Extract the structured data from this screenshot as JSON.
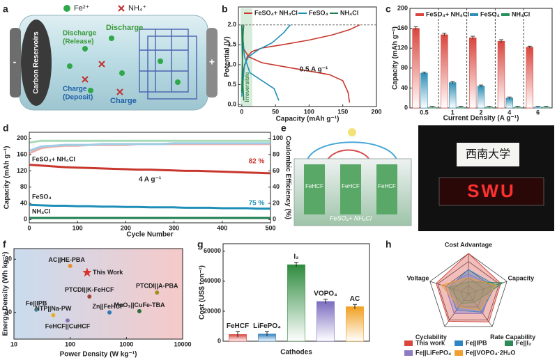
{
  "panel_labels": [
    "a",
    "b",
    "c",
    "d",
    "e",
    "f",
    "g",
    "h"
  ],
  "illustration_a": {
    "legend": [
      "Fe²⁺",
      "NH₄⁺"
    ],
    "labels": [
      "Carbon Reservoirs",
      "Discharge",
      "(Release)",
      "Charge",
      "(Deposit)",
      "Discharge",
      "Charge",
      "-",
      "+"
    ]
  },
  "illustration_e": {
    "labels": [
      "FeHCF",
      "FeHCF",
      "FeHCF",
      "FeSO₄+ NH₄Cl",
      "西南大学",
      "SWU"
    ]
  },
  "chart_data": [
    {
      "type": "line",
      "xlabel": "Capacity (mAh g⁻¹)",
      "ylabel": "Potential (V)",
      "xlim": [
        -5,
        200
      ],
      "xticks": [
        0,
        50,
        100,
        150,
        200
      ],
      "ylim": [
        -0.05,
        2.45
      ],
      "yticks": [
        {
          "value": 0,
          "label": "0.0"
        },
        0.5,
        {
          "value": 1,
          "label": "1.0"
        },
        1.5,
        {
          "value": 2,
          "label": "2.0"
        }
      ],
      "legend": "top",
      "annotations": [
        "0.5 A g⁻¹",
        "Irreversible"
      ],
      "series": [
        {
          "name": "FeSO₄+ NH₄Cl",
          "color": "#c8372d",
          "x": [
            0,
            3,
            8,
            15,
            30,
            60,
            100,
            135,
            160,
            175,
            null,
            0,
            3,
            10,
            30,
            80,
            130,
            150,
            158,
            160
          ],
          "values": [
            0.3,
            0.9,
            1.2,
            1.33,
            1.42,
            1.5,
            1.62,
            1.75,
            1.88,
            2.0,
            null,
            2.0,
            1.4,
            1.2,
            1.05,
            0.9,
            0.75,
            0.6,
            0.3,
            0.05
          ]
        },
        {
          "name": "FeSO₄",
          "color": "#1f8fb8",
          "x": [
            0,
            4,
            10,
            25,
            45,
            62,
            72,
            null,
            0,
            4,
            12,
            30,
            48,
            55
          ],
          "values": [
            0.2,
            1.0,
            1.2,
            1.38,
            1.55,
            1.8,
            2.0,
            null,
            1.95,
            1.2,
            0.8,
            0.6,
            0.4,
            0.1
          ]
        },
        {
          "name": "NH₄Cl",
          "color": "#1e7d4f",
          "x": [
            0,
            1,
            2,
            3,
            null,
            0,
            1,
            2,
            3
          ],
          "values": [
            0.3,
            1.2,
            1.8,
            2.0,
            null,
            2.0,
            1.0,
            0.4,
            0.1
          ]
        }
      ]
    },
    {
      "type": "bar",
      "xlabel": "Current Density (A g⁻¹)",
      "ylabel": "Capacity (mAh g⁻¹)",
      "categories": [
        "0.5",
        "1",
        "2",
        "4",
        "6"
      ],
      "ylim": [
        0,
        200
      ],
      "yticks": [
        0,
        40,
        80,
        120,
        160,
        200
      ],
      "legend": "top",
      "series": [
        {
          "name": "FeSO₄+ NH₄Cl",
          "color": "#d9463e",
          "values": [
            160,
            147,
            141,
            134,
            122
          ],
          "errors": [
            3,
            3,
            3,
            3,
            2
          ]
        },
        {
          "name": "FeSO₄",
          "color": "#2f8fb5",
          "values": [
            70,
            51,
            44,
            20,
            2
          ],
          "errors": [
            2,
            2,
            2,
            2,
            1
          ]
        },
        {
          "name": "NH₄Cl",
          "color": "#2a9060",
          "values": [
            2,
            2,
            2,
            2,
            2
          ],
          "errors": [
            1,
            1,
            1,
            1,
            1
          ]
        }
      ]
    },
    {
      "type": "line",
      "xlabel": "Cycle Number",
      "ylabel": "Capacity (mAh g⁻¹)",
      "y2label": "Coulombic Efficiency (%)",
      "x": [
        1,
        25,
        50,
        75,
        100,
        125,
        150,
        175,
        200,
        225,
        250,
        275,
        300,
        325,
        350,
        375,
        400,
        425,
        450,
        475,
        500
      ],
      "xlim": [
        0,
        500
      ],
      "xticks": [
        0,
        100,
        200,
        300,
        400,
        500
      ],
      "ylim": [
        -8,
        215
      ],
      "yticks": [
        0,
        40,
        80,
        120,
        160,
        200
      ],
      "y2lim": [
        -4,
        107.5
      ],
      "y2ticks": [
        0,
        20,
        40,
        60,
        80,
        100
      ],
      "annotations": [
        "4 A g⁻¹",
        "82 %",
        "75 %"
      ],
      "series": [
        {
          "name": "FeSO₄+ NH₄Cl",
          "color": "#c8372d",
          "values": [
            135,
            133,
            131,
            129,
            128,
            127,
            126,
            125,
            124,
            123,
            123,
            122,
            121,
            120,
            120,
            119,
            118,
            117,
            116,
            115,
            114
          ]
        },
        {
          "name": "FeSO₄",
          "color": "#1f8fb8",
          "values": [
            36,
            35,
            34,
            34,
            33,
            33,
            32,
            32,
            31,
            31,
            30,
            30,
            30,
            29,
            29,
            29,
            28,
            28,
            28,
            27,
            27
          ]
        },
        {
          "name": "NH₄Cl",
          "color": "#1e7d4f",
          "values": [
            4,
            4,
            4,
            4,
            4,
            4,
            4,
            4,
            4,
            4,
            4,
            4,
            4,
            4,
            4,
            4,
            4,
            4,
            4,
            4,
            4
          ]
        },
        {
          "color": "#f0a8a8",
          "axis": "y2",
          "values": [
            82,
            88,
            90,
            91,
            91,
            92,
            92,
            92,
            92,
            93,
            93,
            93,
            93,
            93,
            93,
            93,
            93,
            93,
            93,
            93,
            93
          ]
        },
        {
          "color": "#9fcde3",
          "axis": "y2",
          "values": [
            85,
            90,
            91,
            92,
            92,
            92,
            93,
            93,
            93,
            93,
            93,
            93,
            94,
            94,
            94,
            94,
            94,
            94,
            94,
            94,
            94
          ]
        },
        {
          "color": "#a8dcb8",
          "axis": "y2",
          "values": [
            95,
            97,
            97,
            97,
            97,
            97,
            97,
            97,
            97,
            97,
            97,
            97,
            97,
            97,
            97,
            97,
            97,
            97,
            97,
            97,
            97
          ]
        }
      ]
    },
    {
      "type": "scatter",
      "xlabel": "Power Density (W kg⁻¹)",
      "ylabel": "Energy Density (Wh kg⁻¹)",
      "xlog": true,
      "xlim": [
        10,
        10000
      ],
      "xticks": [
        10,
        100,
        1000,
        10000
      ],
      "ylim": [
        20,
        88
      ],
      "yticks": [
        40,
        80
      ],
      "labels": [
        "AC||HE-PBA",
        "This Work",
        "PTCDI||K-FeHCF",
        "PTCDI||A-PBA",
        "Zn||FeHCF",
        "MoO₃||CuFe-TBA",
        "Fe||IPB",
        "NTP||Na-PW",
        "FeHCF||CuHCF"
      ],
      "x": [
        100,
        200,
        220,
        3500,
        500,
        1700,
        25,
        50,
        90
      ],
      "values": [
        75,
        70,
        52,
        55,
        40,
        41,
        42,
        38,
        34
      ],
      "colors": [
        "#e8902a",
        "#d6332c",
        "#a0453a",
        "#a09020",
        "#2d78b4",
        "#2a6e3a",
        "#5a9aa8",
        "#e0b030",
        "#8a70b8"
      ],
      "markers": [
        "circle",
        "star",
        "circle",
        "circle",
        "circle",
        "circle",
        "circle",
        "circle",
        "circle"
      ]
    },
    {
      "type": "bar",
      "xlabel": "Cathodes",
      "ylabel": "Cost (US$ ton⁻¹)",
      "categories": [
        "FeHCF",
        "LiFePO₄",
        "I₂",
        "VOPO₄",
        "AC"
      ],
      "values": [
        4500,
        4800,
        51000,
        26500,
        23000
      ],
      "errors": [
        1800,
        1500,
        1500,
        1500,
        1500
      ],
      "colors": [
        "#d9463e",
        "#2f7fc0",
        "#2e8b3e",
        "#7b6cc0",
        "#f0a020"
      ],
      "ylim": [
        0,
        65000
      ],
      "yticks": [
        0,
        20000,
        40000,
        60000
      ]
    },
    {
      "type": "radar",
      "categories": [
        "Cost Advantage",
        "Capacity",
        "Rate Capability",
        "Cyclability",
        "Voltage"
      ],
      "rlim": [
        0,
        5
      ],
      "rticks": [
        1,
        2,
        3,
        4,
        5
      ],
      "series": [
        {
          "name": "This work",
          "color": "#d9463e",
          "values": [
            5,
            4.2,
            4.3,
            4.2,
            4.2
          ]
        },
        {
          "name": "Fe||IPB",
          "color": "#2e86c1",
          "values": [
            3,
            3.5,
            2.8,
            2.5,
            2.6
          ]
        },
        {
          "name": "Fe||I₂",
          "color": "#2e8b57",
          "values": [
            1.5,
            4.5,
            1.3,
            1.5,
            2.5
          ]
        },
        {
          "name": "Fe||LiFePO₄",
          "color": "#8e7cc3",
          "values": [
            2.5,
            3,
            3,
            3,
            3
          ]
        },
        {
          "name": "Fe||VOPO₄·2H₂O",
          "color": "#f0a030",
          "values": [
            2,
            3.5,
            2.5,
            2,
            3.5
          ]
        }
      ]
    }
  ]
}
